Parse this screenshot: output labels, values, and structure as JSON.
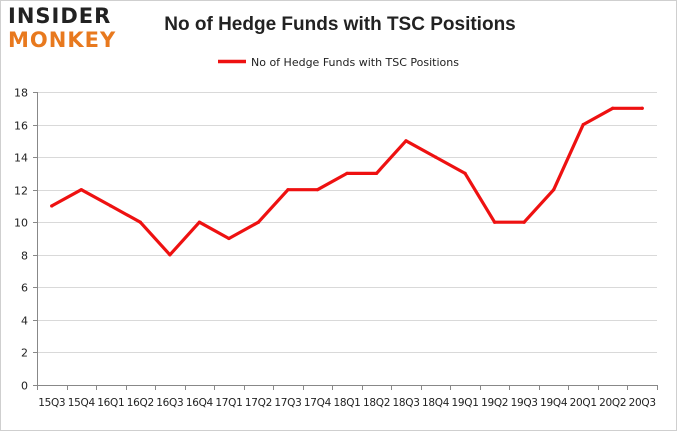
{
  "logo": {
    "line1": "INSIDER",
    "line2": "MONKEY"
  },
  "colors": {
    "series": "#ee1111",
    "grid": "#d9d9d9",
    "axis": "#888888",
    "text": "#222222",
    "logo_accent": "#e8791e"
  },
  "chart_data": {
    "type": "line",
    "title": "No of Hedge Funds with TSC Positions",
    "xlabel": "",
    "ylabel": "",
    "categories": [
      "2015Q3",
      "2015Q4",
      "2016Q1",
      "2016Q2",
      "2016Q3",
      "2016Q4",
      "2017Q1",
      "2017Q2",
      "2017Q3",
      "2017Q4",
      "2018Q1",
      "2018Q2",
      "2018Q3",
      "2018Q4",
      "2019Q1",
      "2019Q2",
      "2019Q3",
      "2019Q4",
      "2020Q1",
      "2020Q2",
      "2020Q3"
    ],
    "x_tick_labels": [
      "15Q3",
      "15Q4",
      "16Q1",
      "16Q2",
      "16Q3",
      "16Q4",
      "17Q1",
      "17Q2",
      "17Q3",
      "17Q4",
      "18Q1",
      "18Q2",
      "18Q3",
      "18Q4",
      "19Q1",
      "19Q2",
      "19Q3",
      "19Q4",
      "20Q1",
      "20Q2",
      "20Q3"
    ],
    "series": [
      {
        "name": "No of Hedge Funds with TSC Positions",
        "values": [
          11,
          12,
          11,
          10,
          8,
          10,
          9,
          10,
          12,
          12,
          13,
          13,
          15,
          14,
          13,
          10,
          10,
          12,
          16,
          17,
          17
        ]
      }
    ],
    "ylim": [
      0,
      18
    ],
    "yticks": [
      0,
      2,
      4,
      6,
      8,
      10,
      12,
      14,
      16,
      18
    ],
    "grid": true,
    "legend_position": "top-center"
  }
}
